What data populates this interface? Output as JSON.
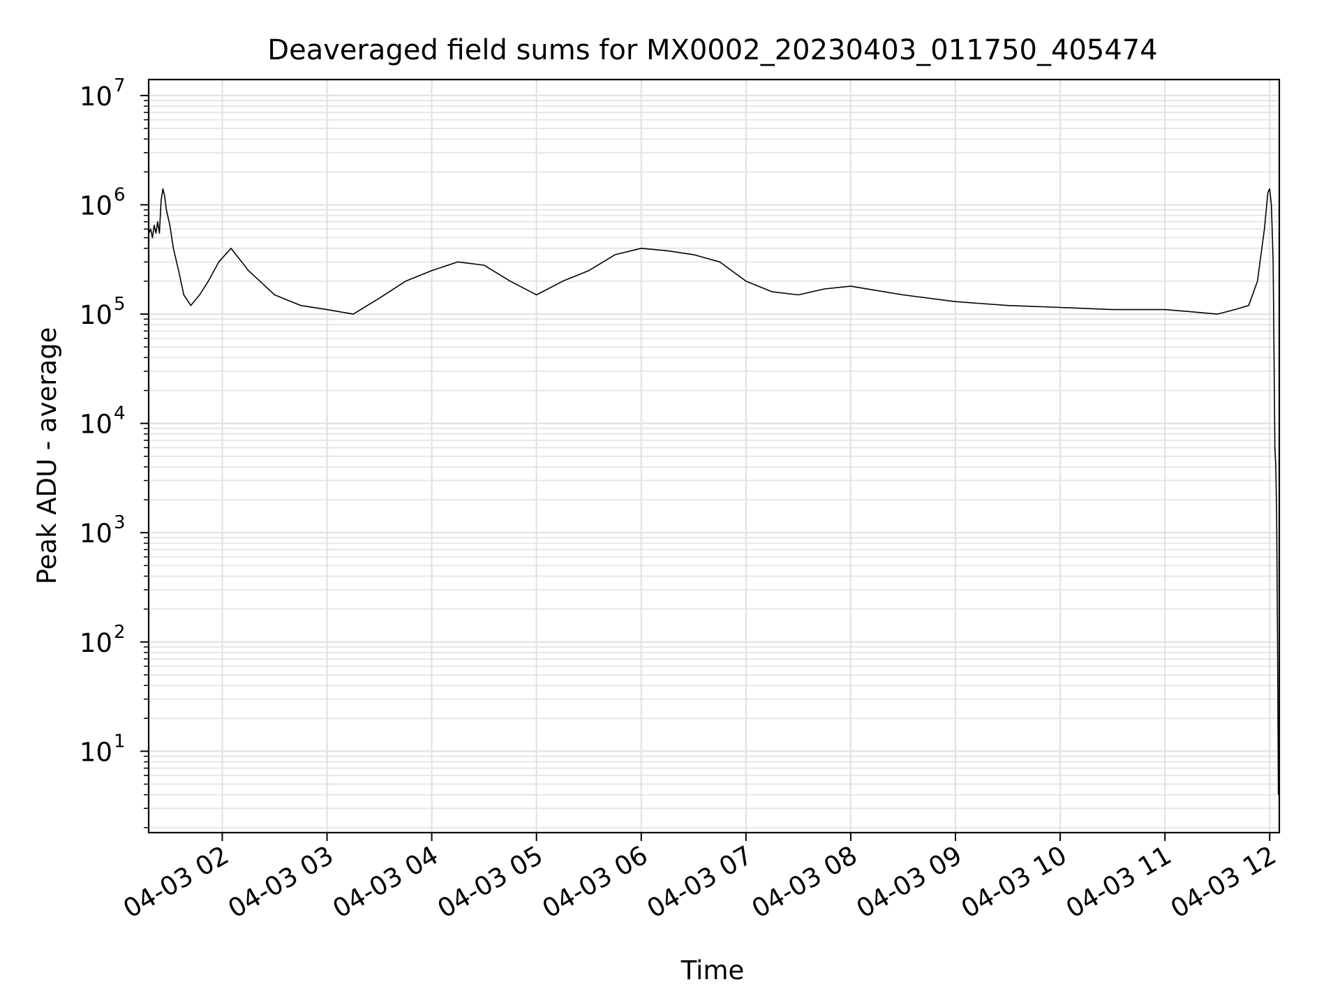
{
  "chart_data": {
    "type": "line",
    "title": "Deaveraged field sums for MX0002_20230403_011750_405474",
    "xlabel": "Time",
    "ylabel": "Peak ADU - average",
    "yscale": "log",
    "ylim": [
      1.8,
      14000000
    ],
    "xlim": [
      "2023-04-03T01:17:50",
      "2023-04-03T12:05:30"
    ],
    "grid": true,
    "line_color": "#000000",
    "x_ticks": [
      {
        "t": "2023-04-03T02:00:00",
        "label": "04-03 02"
      },
      {
        "t": "2023-04-03T03:00:00",
        "label": "04-03 03"
      },
      {
        "t": "2023-04-03T04:00:00",
        "label": "04-03 04"
      },
      {
        "t": "2023-04-03T05:00:00",
        "label": "04-03 05"
      },
      {
        "t": "2023-04-03T06:00:00",
        "label": "04-03 06"
      },
      {
        "t": "2023-04-03T07:00:00",
        "label": "04-03 07"
      },
      {
        "t": "2023-04-03T08:00:00",
        "label": "04-03 08"
      },
      {
        "t": "2023-04-03T09:00:00",
        "label": "04-03 09"
      },
      {
        "t": "2023-04-03T10:00:00",
        "label": "04-03 10"
      },
      {
        "t": "2023-04-03T11:00:00",
        "label": "04-03 11"
      },
      {
        "t": "2023-04-03T12:00:00",
        "label": "04-03 12"
      }
    ],
    "y_ticks": [
      {
        "value": 10,
        "exp": "1"
      },
      {
        "value": 100,
        "exp": "2"
      },
      {
        "value": 1000,
        "exp": "3"
      },
      {
        "value": 10000,
        "exp": "4"
      },
      {
        "value": 100000,
        "exp": "5"
      },
      {
        "value": 1000000,
        "exp": "6"
      },
      {
        "value": 10000000,
        "exp": "7"
      }
    ],
    "series": [
      {
        "x": [
          "2023-04-03T01:18:00",
          "2023-04-03T01:19:00",
          "2023-04-03T01:20:00",
          "2023-04-03T01:21:00",
          "2023-04-03T01:22:00",
          "2023-04-03T01:23:00",
          "2023-04-03T01:24:00",
          "2023-04-03T01:25:00",
          "2023-04-03T01:26:00",
          "2023-04-03T01:27:00",
          "2023-04-03T01:28:00",
          "2023-04-03T01:30:00",
          "2023-04-03T01:32:00",
          "2023-04-03T01:35:00",
          "2023-04-03T01:38:00",
          "2023-04-03T01:42:00",
          "2023-04-03T01:47:00",
          "2023-04-03T01:52:00",
          "2023-04-03T01:58:00",
          "2023-04-03T02:05:00",
          "2023-04-03T02:15:00",
          "2023-04-03T02:30:00",
          "2023-04-03T02:45:00",
          "2023-04-03T03:00:00",
          "2023-04-03T03:15:00",
          "2023-04-03T03:30:00",
          "2023-04-03T03:45:00",
          "2023-04-03T04:00:00",
          "2023-04-03T04:15:00",
          "2023-04-03T04:30:00",
          "2023-04-03T04:45:00",
          "2023-04-03T05:00:00",
          "2023-04-03T05:15:00",
          "2023-04-03T05:30:00",
          "2023-04-03T05:45:00",
          "2023-04-03T06:00:00",
          "2023-04-03T06:15:00",
          "2023-04-03T06:30:00",
          "2023-04-03T06:45:00",
          "2023-04-03T07:00:00",
          "2023-04-03T07:15:00",
          "2023-04-03T07:30:00",
          "2023-04-03T07:45:00",
          "2023-04-03T08:00:00",
          "2023-04-03T08:30:00",
          "2023-04-03T09:00:00",
          "2023-04-03T09:30:00",
          "2023-04-03T10:00:00",
          "2023-04-03T10:30:00",
          "2023-04-03T11:00:00",
          "2023-04-03T11:15:00",
          "2023-04-03T11:30:00",
          "2023-04-03T11:40:00",
          "2023-04-03T11:48:00",
          "2023-04-03T11:53:00",
          "2023-04-03T11:57:00",
          "2023-04-03T11:59:00",
          "2023-04-03T12:00:00",
          "2023-04-03T12:01:00",
          "2023-04-03T12:02:00",
          "2023-04-03T12:03:00",
          "2023-04-03T12:03:30",
          "2023-04-03T12:04:00",
          "2023-04-03T12:04:30",
          "2023-04-03T12:05:00"
        ],
        "y": [
          550000,
          600000,
          500000,
          650000,
          550000,
          700000,
          550000,
          1100000,
          1400000,
          1200000,
          900000,
          650000,
          400000,
          250000,
          150000,
          120000,
          150000,
          200000,
          300000,
          400000,
          250000,
          150000,
          120000,
          110000,
          100000,
          140000,
          200000,
          250000,
          300000,
          280000,
          200000,
          150000,
          200000,
          250000,
          350000,
          400000,
          380000,
          350000,
          300000,
          200000,
          160000,
          150000,
          170000,
          180000,
          150000,
          130000,
          120000,
          115000,
          110000,
          110000,
          105000,
          100000,
          110000,
          120000,
          200000,
          600000,
          1300000,
          1400000,
          1000000,
          300000,
          6000,
          4000,
          1500,
          100,
          4
        ]
      }
    ]
  }
}
